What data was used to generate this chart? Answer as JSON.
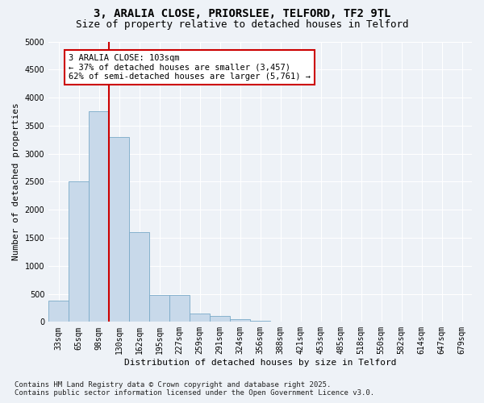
{
  "title1": "3, ARALIA CLOSE, PRIORSLEE, TELFORD, TF2 9TL",
  "title2": "Size of property relative to detached houses in Telford",
  "xlabel": "Distribution of detached houses by size in Telford",
  "ylabel": "Number of detached properties",
  "categories": [
    "33sqm",
    "65sqm",
    "98sqm",
    "130sqm",
    "162sqm",
    "195sqm",
    "227sqm",
    "259sqm",
    "291sqm",
    "324sqm",
    "356sqm",
    "388sqm",
    "421sqm",
    "453sqm",
    "485sqm",
    "518sqm",
    "550sqm",
    "582sqm",
    "614sqm",
    "647sqm",
    "679sqm"
  ],
  "values": [
    375,
    2500,
    3750,
    3300,
    1600,
    480,
    480,
    150,
    100,
    50,
    15,
    0,
    0,
    0,
    0,
    0,
    0,
    0,
    0,
    0,
    0
  ],
  "bar_color": "#c8d9ea",
  "bar_edgecolor": "#7aaac8",
  "vline_color": "#cc0000",
  "annotation_title": "3 ARALIA CLOSE: 103sqm",
  "annotation_line1": "← 37% of detached houses are smaller (3,457)",
  "annotation_line2": "62% of semi-detached houses are larger (5,761) →",
  "annotation_box_facecolor": "#ffffff",
  "annotation_box_edgecolor": "#cc0000",
  "ylim": [
    0,
    5000
  ],
  "yticks": [
    0,
    500,
    1000,
    1500,
    2000,
    2500,
    3000,
    3500,
    4000,
    4500,
    5000
  ],
  "footnote1": "Contains HM Land Registry data © Crown copyright and database right 2025.",
  "footnote2": "Contains public sector information licensed under the Open Government Licence v3.0.",
  "bg_color": "#eef2f7",
  "plot_bg_color": "#eef2f7",
  "grid_color": "#ffffff",
  "title1_fontsize": 10,
  "title2_fontsize": 9,
  "annotation_fontsize": 7.5,
  "tick_fontsize": 7,
  "ylabel_fontsize": 8,
  "xlabel_fontsize": 8,
  "footnote_fontsize": 6.5
}
